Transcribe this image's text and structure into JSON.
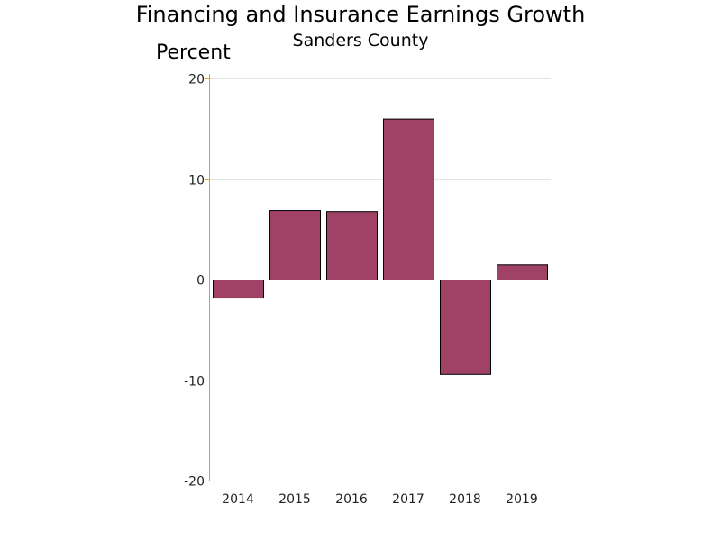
{
  "chart_data": {
    "type": "bar",
    "title": "Financing and Insurance Earnings Growth",
    "subtitle": "Sanders County",
    "ylabel": "Percent",
    "xlabel": "",
    "categories": [
      "2014",
      "2015",
      "2016",
      "2017",
      "2018",
      "2019"
    ],
    "values": [
      -1.8,
      6.9,
      6.8,
      16.0,
      -9.4,
      1.5
    ],
    "ylim": [
      -20,
      20
    ],
    "yticks": [
      -20,
      -10,
      0,
      10,
      20
    ],
    "ytick_labels": [
      "-20",
      "-10",
      "0",
      "10",
      "20"
    ],
    "grid": true,
    "legend": "none",
    "colors": {
      "bar_fill": "#A04266",
      "bar_stroke": "#000000",
      "axis": "#F0A000",
      "grid": "#E4E4E4"
    }
  }
}
